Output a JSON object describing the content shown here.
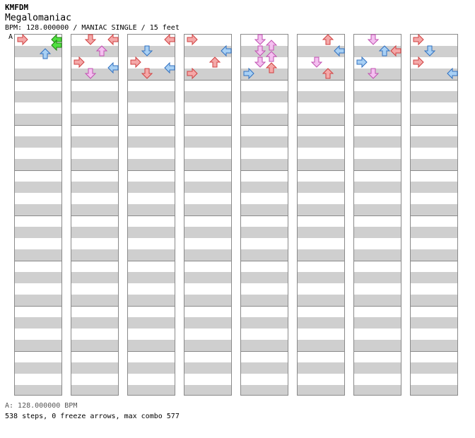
{
  "header": {
    "artist": "KMFDM",
    "title": "Megalomaniac",
    "info": "BPM: 128.000000 / MANIAC SINGLE / 15 feet",
    "bpm_marker": "A"
  },
  "footer": {
    "bpm_legend": "A: 128.000000 BPM",
    "stats": "538 steps, 0 freeze arrows, max combo 577"
  },
  "colors": {
    "quarter": "#f4a8a8",
    "quarter_stroke": "#d04040",
    "eighth": "#a8d0f4",
    "eighth_stroke": "#3070c0",
    "sixteenth": "#f4c0f0",
    "sixteenth_stroke": "#c050b0",
    "first_note": "#50e040",
    "first_note_stroke": "#208010",
    "stripe": "#cfcfcf",
    "border": "#8a8a8a"
  },
  "chart": {
    "columns": 8,
    "measures_per_column": 8,
    "notes": [
      [
        0,
        0,
        0,
        "q"
      ],
      [
        0,
        3,
        0,
        "g"
      ],
      [
        0,
        3,
        0.5,
        "g"
      ],
      [
        0,
        2,
        1.25,
        "e"
      ],
      [
        1,
        1,
        0,
        "q"
      ],
      [
        1,
        3,
        0,
        "q"
      ],
      [
        1,
        2,
        1,
        "s"
      ],
      [
        1,
        0,
        2,
        "q"
      ],
      [
        1,
        3,
        2.5,
        "e"
      ],
      [
        1,
        1,
        3,
        "s"
      ],
      [
        2,
        3,
        0,
        "q"
      ],
      [
        2,
        1,
        1,
        "e"
      ],
      [
        2,
        0,
        2,
        "q"
      ],
      [
        2,
        3,
        2.5,
        "e"
      ],
      [
        2,
        1,
        3,
        "q"
      ],
      [
        3,
        0,
        0,
        "q"
      ],
      [
        3,
        3,
        1,
        "e"
      ],
      [
        3,
        2,
        2,
        "q"
      ],
      [
        3,
        0,
        3,
        "q"
      ],
      [
        4,
        1,
        0,
        "s"
      ],
      [
        4,
        2,
        0.5,
        "s"
      ],
      [
        4,
        1,
        1,
        "s"
      ],
      [
        4,
        2,
        1.5,
        "s"
      ],
      [
        4,
        1,
        2,
        "s"
      ],
      [
        4,
        2,
        2.5,
        "q"
      ],
      [
        4,
        0,
        3,
        "e"
      ],
      [
        5,
        2,
        0,
        "q"
      ],
      [
        5,
        3,
        1,
        "e"
      ],
      [
        5,
        1,
        2,
        "s"
      ],
      [
        5,
        2,
        3,
        "q"
      ],
      [
        6,
        1,
        0,
        "s"
      ],
      [
        6,
        2,
        1,
        "e"
      ],
      [
        6,
        3,
        1,
        "q"
      ],
      [
        6,
        0,
        2,
        "e"
      ],
      [
        6,
        1,
        3,
        "s"
      ],
      [
        7,
        0,
        0,
        "q"
      ],
      [
        7,
        1,
        1,
        "e"
      ],
      [
        7,
        0,
        2,
        "q"
      ],
      [
        7,
        3,
        3,
        "e"
      ]
    ]
  }
}
